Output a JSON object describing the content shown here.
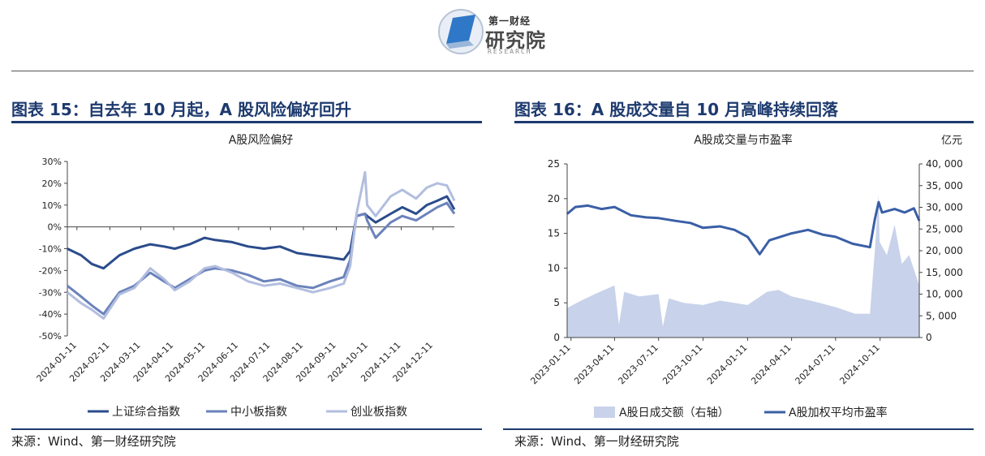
{
  "header": {
    "logo_small": "第一财经",
    "logo_big": "研究院",
    "logo_en": "RESEARCH"
  },
  "colors": {
    "title_navy": "#1d3a6e",
    "sse": "#2b4c8c",
    "smb": "#6b82bb",
    "chinext": "#b2bedf",
    "volume_fill": "#c8d2ea",
    "pe_line": "#3a5fa6"
  },
  "figure15": {
    "title": "图表 15：自去年 10 月起，A 股风险偏好回升",
    "source": "来源：Wind、第一财经研究院",
    "chart_data": {
      "type": "line",
      "title": "A股风险偏好",
      "ylim": [
        -0.5,
        0.3
      ],
      "yticks": [
        0.3,
        0.2,
        0.1,
        0,
        -0.1,
        -0.2,
        -0.3,
        -0.4,
        -0.5
      ],
      "ytick_labels": [
        "30%",
        "20%",
        "10%",
        "0%",
        "-10%",
        "-20%",
        "-30%",
        "-40%",
        "-50%"
      ],
      "xticks": [
        "2024-01-11",
        "2024-02-11",
        "2024-03-11",
        "2024-04-11",
        "2024-05-11",
        "2024-06-11",
        "2024-07-11",
        "2024-08-11",
        "2024-09-11",
        "2024-10-11",
        "2024-11-11",
        "2024-12-11"
      ],
      "x_range": [
        "2024-01-02",
        "2024-12-31"
      ],
      "legend_position": "bottom",
      "series": [
        {
          "name": "上证综合指数",
          "color": "#2b4c8c",
          "points": [
            [
              "2024-01-02",
              -0.1
            ],
            [
              "2024-01-15",
              -0.13
            ],
            [
              "2024-01-25",
              -0.17
            ],
            [
              "2024-02-05",
              -0.19
            ],
            [
              "2024-02-20",
              -0.13
            ],
            [
              "2024-03-05",
              -0.1
            ],
            [
              "2024-03-20",
              -0.08
            ],
            [
              "2024-04-02",
              -0.09
            ],
            [
              "2024-04-12",
              -0.1
            ],
            [
              "2024-04-26",
              -0.08
            ],
            [
              "2024-05-10",
              -0.05
            ],
            [
              "2024-05-20",
              -0.06
            ],
            [
              "2024-06-05",
              -0.07
            ],
            [
              "2024-06-20",
              -0.09
            ],
            [
              "2024-07-05",
              -0.1
            ],
            [
              "2024-07-20",
              -0.09
            ],
            [
              "2024-08-05",
              -0.12
            ],
            [
              "2024-08-20",
              -0.13
            ],
            [
              "2024-09-05",
              -0.14
            ],
            [
              "2024-09-18",
              -0.15
            ],
            [
              "2024-09-24",
              -0.11
            ],
            [
              "2024-09-30",
              0.05
            ],
            [
              "2024-10-08",
              0.06
            ],
            [
              "2024-10-10",
              0.05
            ],
            [
              "2024-10-18",
              0.02
            ],
            [
              "2024-11-01",
              0.06
            ],
            [
              "2024-11-12",
              0.09
            ],
            [
              "2024-11-25",
              0.06
            ],
            [
              "2024-12-05",
              0.1
            ],
            [
              "2024-12-15",
              0.12
            ],
            [
              "2024-12-24",
              0.14
            ],
            [
              "2024-12-31",
              0.08
            ]
          ]
        },
        {
          "name": "中小板指数",
          "color": "#6b82bb",
          "points": [
            [
              "2024-01-02",
              -0.27
            ],
            [
              "2024-01-15",
              -0.32
            ],
            [
              "2024-01-25",
              -0.36
            ],
            [
              "2024-02-05",
              -0.4
            ],
            [
              "2024-02-20",
              -0.3
            ],
            [
              "2024-03-05",
              -0.27
            ],
            [
              "2024-03-20",
              -0.21
            ],
            [
              "2024-04-02",
              -0.25
            ],
            [
              "2024-04-12",
              -0.28
            ],
            [
              "2024-04-26",
              -0.24
            ],
            [
              "2024-05-10",
              -0.2
            ],
            [
              "2024-05-20",
              -0.19
            ],
            [
              "2024-06-05",
              -0.2
            ],
            [
              "2024-06-20",
              -0.22
            ],
            [
              "2024-07-05",
              -0.25
            ],
            [
              "2024-07-20",
              -0.24
            ],
            [
              "2024-08-05",
              -0.27
            ],
            [
              "2024-08-20",
              -0.28
            ],
            [
              "2024-09-05",
              -0.25
            ],
            [
              "2024-09-18",
              -0.23
            ],
            [
              "2024-09-24",
              -0.15
            ],
            [
              "2024-09-30",
              0.05
            ],
            [
              "2024-10-08",
              0.06
            ],
            [
              "2024-10-10",
              0.03
            ],
            [
              "2024-10-18",
              -0.05
            ],
            [
              "2024-11-01",
              0.02
            ],
            [
              "2024-11-12",
              0.05
            ],
            [
              "2024-11-25",
              0.03
            ],
            [
              "2024-12-05",
              0.06
            ],
            [
              "2024-12-15",
              0.09
            ],
            [
              "2024-12-24",
              0.11
            ],
            [
              "2024-12-31",
              0.06
            ]
          ]
        },
        {
          "name": "创业板指数",
          "color": "#b2bedf",
          "points": [
            [
              "2024-01-02",
              -0.3
            ],
            [
              "2024-01-15",
              -0.35
            ],
            [
              "2024-01-25",
              -0.38
            ],
            [
              "2024-02-05",
              -0.42
            ],
            [
              "2024-02-20",
              -0.31
            ],
            [
              "2024-03-05",
              -0.28
            ],
            [
              "2024-03-20",
              -0.19
            ],
            [
              "2024-04-02",
              -0.24
            ],
            [
              "2024-04-12",
              -0.29
            ],
            [
              "2024-04-26",
              -0.25
            ],
            [
              "2024-05-10",
              -0.19
            ],
            [
              "2024-05-20",
              -0.18
            ],
            [
              "2024-06-05",
              -0.21
            ],
            [
              "2024-06-20",
              -0.25
            ],
            [
              "2024-07-05",
              -0.27
            ],
            [
              "2024-07-20",
              -0.26
            ],
            [
              "2024-08-05",
              -0.28
            ],
            [
              "2024-08-20",
              -0.3
            ],
            [
              "2024-09-05",
              -0.28
            ],
            [
              "2024-09-18",
              -0.26
            ],
            [
              "2024-09-24",
              -0.18
            ],
            [
              "2024-09-30",
              0.06
            ],
            [
              "2024-10-08",
              0.25
            ],
            [
              "2024-10-10",
              0.1
            ],
            [
              "2024-10-18",
              0.05
            ],
            [
              "2024-11-01",
              0.14
            ],
            [
              "2024-11-12",
              0.17
            ],
            [
              "2024-11-25",
              0.13
            ],
            [
              "2024-12-05",
              0.18
            ],
            [
              "2024-12-15",
              0.2
            ],
            [
              "2024-12-24",
              0.19
            ],
            [
              "2024-12-31",
              0.12
            ]
          ]
        }
      ]
    }
  },
  "figure16": {
    "title": "图表 16：A 股成交量自 10 月高峰持续回落",
    "source": "来源：Wind、第一财经研究院",
    "chart_data": {
      "type": "area",
      "title": "A股成交量与市盈率",
      "right_axis_unit": "亿元",
      "left_ylim": [
        0,
        25
      ],
      "left_yticks": [
        0,
        5,
        10,
        15,
        20,
        25
      ],
      "right_ylim": [
        0,
        40000
      ],
      "right_yticks": [
        0,
        5000,
        10000,
        15000,
        20000,
        25000,
        30000,
        35000,
        40000
      ],
      "right_ytick_labels": [
        "0",
        "5, 000",
        "10, 000",
        "15, 000",
        "20, 000",
        "25, 000",
        "30, 000",
        "35, 000",
        "40, 000"
      ],
      "xticks": [
        "2023-01-11",
        "2023-04-11",
        "2023-07-11",
        "2023-10-11",
        "2024-01-11",
        "2024-04-11",
        "2024-07-11",
        "2024-10-11"
      ],
      "x_range": [
        "2023-01-03",
        "2024-12-31"
      ],
      "legend_position": "bottom",
      "series": [
        {
          "name": "A股日成交额（右轴）",
          "axis": "right",
          "kind": "area",
          "color": "#c8d2ea",
          "points": [
            [
              "2023-01-03",
              6800
            ],
            [
              "2023-02-01",
              8500
            ],
            [
              "2023-03-01",
              10000
            ],
            [
              "2023-04-11",
              12000
            ],
            [
              "2023-04-20",
              3000
            ],
            [
              "2023-05-01",
              10500
            ],
            [
              "2023-06-01",
              9500
            ],
            [
              "2023-07-11",
              10000
            ],
            [
              "2023-07-20",
              2500
            ],
            [
              "2023-08-01",
              9000
            ],
            [
              "2023-09-01",
              8000
            ],
            [
              "2023-10-11",
              7500
            ],
            [
              "2023-11-15",
              8500
            ],
            [
              "2024-01-11",
              7500
            ],
            [
              "2024-02-20",
              10500
            ],
            [
              "2024-03-15",
              11000
            ],
            [
              "2024-04-11",
              9500
            ],
            [
              "2024-05-20",
              8500
            ],
            [
              "2024-07-11",
              7000
            ],
            [
              "2024-08-20",
              5500
            ],
            [
              "2024-09-20",
              5500
            ],
            [
              "2024-09-30",
              20000
            ],
            [
              "2024-10-08",
              33000
            ],
            [
              "2024-10-10",
              22000
            ],
            [
              "2024-10-25",
              19000
            ],
            [
              "2024-11-10",
              26000
            ],
            [
              "2024-11-25",
              17000
            ],
            [
              "2024-12-10",
              19000
            ],
            [
              "2024-12-31",
              12000
            ]
          ]
        },
        {
          "name": "A股加权平均市盈率",
          "axis": "left",
          "kind": "line",
          "color": "#3a5fa6",
          "points": [
            [
              "2023-01-03",
              17.8
            ],
            [
              "2023-01-20",
              18.8
            ],
            [
              "2023-02-15",
              19.0
            ],
            [
              "2023-03-15",
              18.5
            ],
            [
              "2023-04-11",
              18.8
            ],
            [
              "2023-05-15",
              17.6
            ],
            [
              "2023-06-15",
              17.3
            ],
            [
              "2023-07-11",
              17.2
            ],
            [
              "2023-08-15",
              16.8
            ],
            [
              "2023-09-15",
              16.5
            ],
            [
              "2023-10-11",
              15.8
            ],
            [
              "2023-11-15",
              16.0
            ],
            [
              "2023-12-15",
              15.5
            ],
            [
              "2024-01-11",
              14.5
            ],
            [
              "2024-02-05",
              12.0
            ],
            [
              "2024-02-25",
              14.0
            ],
            [
              "2024-04-11",
              15.0
            ],
            [
              "2024-05-15",
              15.5
            ],
            [
              "2024-06-15",
              14.8
            ],
            [
              "2024-07-11",
              14.5
            ],
            [
              "2024-08-15",
              13.5
            ],
            [
              "2024-09-20",
              13.0
            ],
            [
              "2024-09-30",
              17.0
            ],
            [
              "2024-10-08",
              19.5
            ],
            [
              "2024-10-15",
              18.0
            ],
            [
              "2024-11-10",
              18.5
            ],
            [
              "2024-12-01",
              18.0
            ],
            [
              "2024-12-20",
              18.6
            ],
            [
              "2024-12-31",
              16.8
            ]
          ]
        }
      ]
    }
  }
}
